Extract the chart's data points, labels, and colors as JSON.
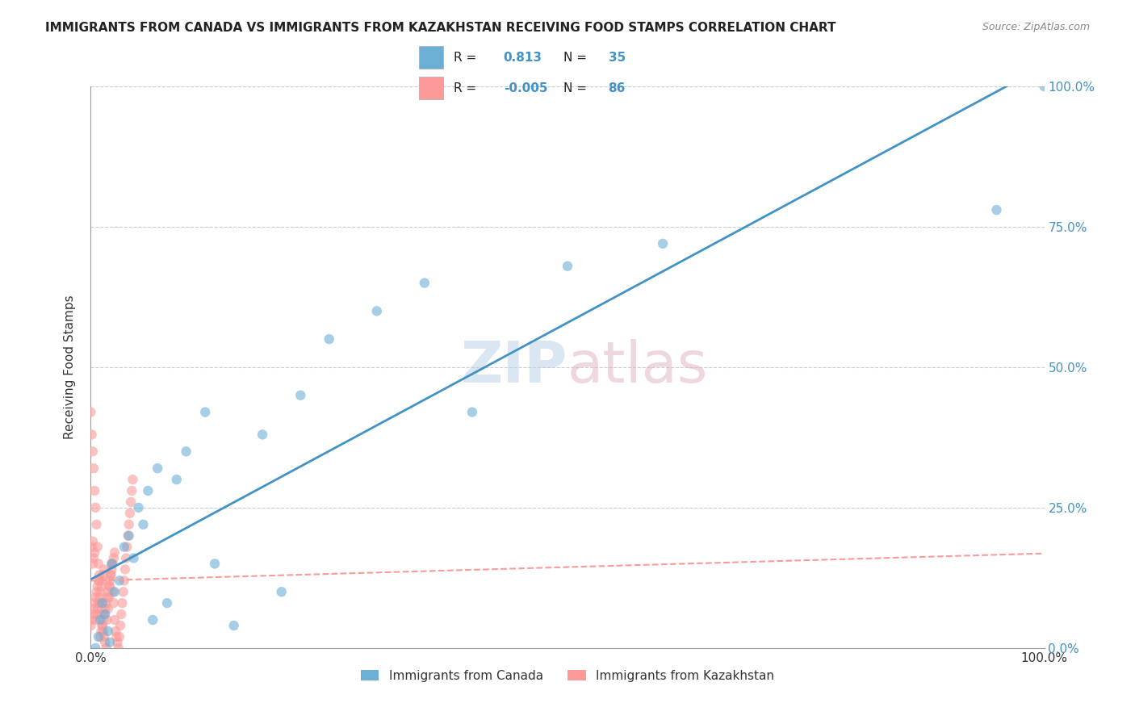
{
  "title": "IMMIGRANTS FROM CANADA VS IMMIGRANTS FROM KAZAKHSTAN RECEIVING FOOD STAMPS CORRELATION CHART",
  "source": "Source: ZipAtlas.com",
  "ylabel": "Receiving Food Stamps",
  "xlabel": "",
  "xlim": [
    0.0,
    1.0
  ],
  "ylim": [
    0.0,
    1.0
  ],
  "xtick_labels": [
    "0.0%",
    "100.0%"
  ],
  "ytick_labels": [
    "0.0%",
    "25.0%",
    "50.0%",
    "75.0%",
    "100.0%"
  ],
  "canada_R": 0.813,
  "canada_N": 35,
  "kazakhstan_R": -0.005,
  "kazakhstan_N": 86,
  "canada_color": "#6baed6",
  "kazakhstan_color": "#fb9a99",
  "canada_line_color": "#4292c6",
  "kazakhstan_line_color": "#e377c2",
  "watermark": "ZIPatlas",
  "watermark_color_zip": "#b0c4de",
  "watermark_color_atlas": "#d4a0b0",
  "canada_scatter": {
    "x": [
      0.005,
      0.008,
      0.01,
      0.012,
      0.015,
      0.018,
      0.02,
      0.022,
      0.025,
      0.03,
      0.035,
      0.04,
      0.045,
      0.05,
      0.055,
      0.06,
      0.065,
      0.07,
      0.08,
      0.09,
      0.1,
      0.12,
      0.13,
      0.15,
      0.18,
      0.2,
      0.22,
      0.25,
      0.3,
      0.35,
      0.4,
      0.5,
      0.6,
      0.95,
      1.0
    ],
    "y": [
      0.0,
      0.02,
      0.05,
      0.08,
      0.06,
      0.03,
      0.01,
      0.15,
      0.1,
      0.12,
      0.18,
      0.2,
      0.16,
      0.25,
      0.22,
      0.28,
      0.05,
      0.32,
      0.08,
      0.3,
      0.35,
      0.42,
      0.15,
      0.04,
      0.38,
      0.1,
      0.45,
      0.55,
      0.6,
      0.65,
      0.42,
      0.68,
      0.72,
      0.78,
      1.0
    ]
  },
  "kazakhstan_scatter": {
    "x": [
      0.0,
      0.001,
      0.002,
      0.003,
      0.004,
      0.005,
      0.006,
      0.007,
      0.008,
      0.009,
      0.01,
      0.011,
      0.012,
      0.013,
      0.014,
      0.015,
      0.016,
      0.017,
      0.018,
      0.019,
      0.02,
      0.021,
      0.022,
      0.023,
      0.024,
      0.025,
      0.026,
      0.027,
      0.028,
      0.029,
      0.03,
      0.031,
      0.032,
      0.033,
      0.034,
      0.035,
      0.036,
      0.037,
      0.038,
      0.039,
      0.04,
      0.041,
      0.042,
      0.043,
      0.044,
      0.005,
      0.006,
      0.007,
      0.008,
      0.009,
      0.01,
      0.011,
      0.012,
      0.013,
      0.014,
      0.002,
      0.003,
      0.004,
      0.001,
      0.002,
      0.0,
      0.001,
      0.002,
      0.003,
      0.004,
      0.005,
      0.006,
      0.007,
      0.008,
      0.009,
      0.01,
      0.011,
      0.012,
      0.013,
      0.014,
      0.015,
      0.016,
      0.017,
      0.018,
      0.019,
      0.02,
      0.021,
      0.022,
      0.023,
      0.024,
      0.025
    ],
    "y": [
      0.42,
      0.38,
      0.35,
      0.32,
      0.28,
      0.25,
      0.22,
      0.18,
      0.15,
      0.12,
      0.08,
      0.06,
      0.04,
      0.03,
      0.02,
      0.01,
      0.0,
      0.05,
      0.07,
      0.09,
      0.11,
      0.13,
      0.15,
      0.1,
      0.08,
      0.05,
      0.03,
      0.02,
      0.01,
      0.0,
      0.02,
      0.04,
      0.06,
      0.08,
      0.1,
      0.12,
      0.14,
      0.16,
      0.18,
      0.2,
      0.22,
      0.24,
      0.26,
      0.28,
      0.3,
      0.05,
      0.06,
      0.07,
      0.08,
      0.09,
      0.1,
      0.11,
      0.12,
      0.13,
      0.14,
      0.15,
      0.16,
      0.17,
      0.18,
      0.19,
      0.04,
      0.05,
      0.06,
      0.07,
      0.08,
      0.09,
      0.1,
      0.11,
      0.12,
      0.13,
      0.02,
      0.03,
      0.04,
      0.05,
      0.06,
      0.07,
      0.08,
      0.09,
      0.1,
      0.11,
      0.12,
      0.13,
      0.14,
      0.15,
      0.16,
      0.17
    ]
  }
}
